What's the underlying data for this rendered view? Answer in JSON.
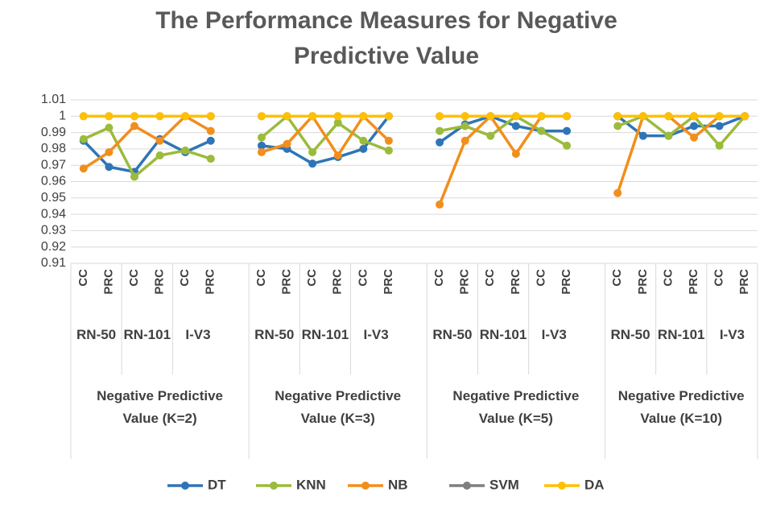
{
  "chart_data": {
    "type": "line",
    "title": "The Performance Measures for Negative Predictive Value",
    "categories": [
      "CC",
      "PRC",
      "CC",
      "PRC",
      "CC",
      "PRC",
      null,
      "CC",
      "PRC",
      "CC",
      "PRC",
      "CC",
      "PRC",
      null,
      "CC",
      "PRC",
      "CC",
      "PRC",
      "CC",
      "PRC",
      null,
      "CC",
      "PRC",
      "CC",
      "PRC",
      "CC",
      "PRC"
    ],
    "groups": [
      {
        "label": "Negative Predictive Value  (K=2)",
        "models": [
          "RN-50",
          "RN-101",
          "I-V3"
        ]
      },
      {
        "label": "Negative Predictive Value (K=3)",
        "models": [
          "RN-50",
          "RN-101",
          "I-V3"
        ]
      },
      {
        "label": "Negative Predictive Value (K=5)",
        "models": [
          "RN-50",
          "RN-101",
          "I-V3"
        ]
      },
      {
        "label": "Negative Predictive Value (K=10)",
        "models": [
          "RN-50",
          "RN-101",
          "I-V3"
        ]
      }
    ],
    "series": [
      {
        "name": "DT",
        "color": "#2e75b6",
        "values": [
          0.985,
          0.969,
          0.966,
          0.986,
          0.978,
          0.985,
          null,
          0.982,
          0.98,
          0.971,
          0.975,
          0.98,
          1.0,
          null,
          0.984,
          0.995,
          1.0,
          0.994,
          0.991,
          0.991,
          null,
          1.0,
          0.988,
          0.988,
          0.994,
          0.994,
          1.0
        ]
      },
      {
        "name": "KNN",
        "color": "#9bbb3b",
        "values": [
          0.986,
          0.993,
          0.963,
          0.976,
          0.979,
          0.974,
          null,
          0.987,
          1.0,
          0.978,
          0.996,
          0.985,
          0.979,
          null,
          0.991,
          0.994,
          0.988,
          1.0,
          0.991,
          0.982,
          null,
          0.994,
          1.0,
          0.988,
          1.0,
          0.982,
          1.0
        ]
      },
      {
        "name": "NB",
        "color": "#f28e1c",
        "values": [
          0.968,
          0.978,
          0.994,
          0.985,
          1.0,
          0.991,
          null,
          0.978,
          0.983,
          1.0,
          0.976,
          1.0,
          0.985,
          null,
          0.946,
          0.985,
          1.0,
          0.977,
          1.0,
          1.0,
          null,
          0.953,
          1.0,
          1.0,
          0.987,
          1.0,
          1.0
        ]
      },
      {
        "name": "SVM",
        "color": "#7f7f7f",
        "values": [
          1.0,
          1.0,
          1.0,
          1.0,
          1.0,
          1.0,
          null,
          1.0,
          1.0,
          1.0,
          1.0,
          1.0,
          1.0,
          null,
          1.0,
          1.0,
          1.0,
          1.0,
          1.0,
          1.0,
          null,
          1.0,
          1.0,
          1.0,
          1.0,
          1.0,
          1.0
        ]
      },
      {
        "name": "DA",
        "color": "#ffc000",
        "values": [
          1.0,
          1.0,
          1.0,
          1.0,
          1.0,
          1.0,
          null,
          1.0,
          1.0,
          1.0,
          1.0,
          1.0,
          1.0,
          null,
          1.0,
          1.0,
          1.0,
          1.0,
          1.0,
          1.0,
          null,
          1.0,
          1.0,
          1.0,
          1.0,
          1.0,
          1.0
        ]
      }
    ],
    "ylim": [
      0.91,
      1.01
    ],
    "yticks": [
      0.91,
      0.92,
      0.93,
      0.94,
      0.95,
      0.96,
      0.97,
      0.98,
      0.99,
      1,
      1.01
    ],
    "grid": true,
    "legend": "bottom"
  }
}
